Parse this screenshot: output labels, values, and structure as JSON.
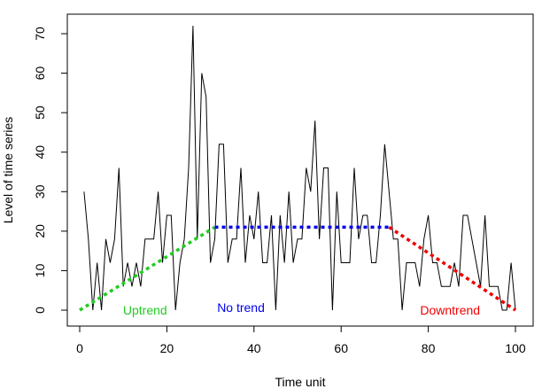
{
  "chart_data": {
    "type": "line",
    "xlabel": "Time unit",
    "ylabel": "Level of time series",
    "xlim": [
      -4,
      102
    ],
    "ylim": [
      -3,
      74
    ],
    "xticks": [
      0,
      20,
      40,
      60,
      80,
      100
    ],
    "yticks": [
      0,
      10,
      20,
      30,
      40,
      50,
      60,
      70
    ],
    "grid": false,
    "series": [
      {
        "color": "#000000",
        "x": [
          1,
          2,
          3,
          4,
          5,
          6,
          7,
          8,
          9,
          10,
          11,
          12,
          13,
          14,
          15,
          16,
          17,
          18,
          19,
          20,
          21,
          22,
          23,
          24,
          25,
          26,
          27,
          28,
          29,
          30,
          31,
          32,
          33,
          34,
          35,
          36,
          37,
          38,
          39,
          40,
          41,
          42,
          43,
          44,
          45,
          46,
          47,
          48,
          49,
          50,
          51,
          52,
          53,
          54,
          55,
          56,
          57,
          58,
          59,
          60,
          61,
          62,
          63,
          64,
          65,
          66,
          67,
          68,
          69,
          70,
          71,
          72,
          73,
          74,
          75,
          76,
          77,
          78,
          79,
          80,
          81,
          82,
          83,
          84,
          85,
          86,
          87,
          88,
          89,
          90,
          91,
          92,
          93,
          94,
          95,
          96,
          97,
          98,
          99,
          100
        ],
        "y": [
          30,
          18,
          0,
          12,
          0,
          18,
          12,
          18,
          36,
          6,
          12,
          6,
          12,
          6,
          18,
          18,
          18,
          30,
          12,
          24,
          24,
          0,
          12,
          18,
          36,
          72,
          18,
          60,
          54,
          12,
          18,
          42,
          42,
          12,
          18,
          18,
          36,
          12,
          24,
          18,
          30,
          12,
          12,
          24,
          0,
          24,
          12,
          30,
          12,
          18,
          18,
          36,
          30,
          48,
          18,
          36,
          36,
          0,
          30,
          12,
          12,
          12,
          36,
          18,
          24,
          24,
          12,
          12,
          24,
          42,
          30,
          18,
          18,
          0,
          12,
          12,
          12,
          6,
          18,
          24,
          12,
          12,
          6,
          6,
          6,
          12,
          6,
          24,
          24,
          18,
          12,
          6,
          24,
          6,
          6,
          6,
          0,
          0,
          12,
          0
        ]
      }
    ],
    "trends": [
      {
        "label": "Uptrend",
        "color": "#22cc22",
        "x": [
          0,
          31
        ],
        "y": [
          0,
          21
        ]
      },
      {
        "label": "No trend",
        "color": "#0000ee",
        "x": [
          31,
          71
        ],
        "y": [
          21,
          21
        ]
      },
      {
        "label": "Downtrend",
        "color": "#ee0000",
        "x": [
          71,
          100
        ],
        "y": [
          21,
          0
        ]
      }
    ],
    "annotations": [
      {
        "text": "Uptrend",
        "x": 15,
        "y": 0,
        "color": "#22cc22"
      },
      {
        "text": "No trend",
        "x": 37,
        "y": 0.7,
        "color": "#0000ee"
      },
      {
        "text": "Downtrend",
        "x": 85,
        "y": 0,
        "color": "#ee0000"
      }
    ]
  }
}
